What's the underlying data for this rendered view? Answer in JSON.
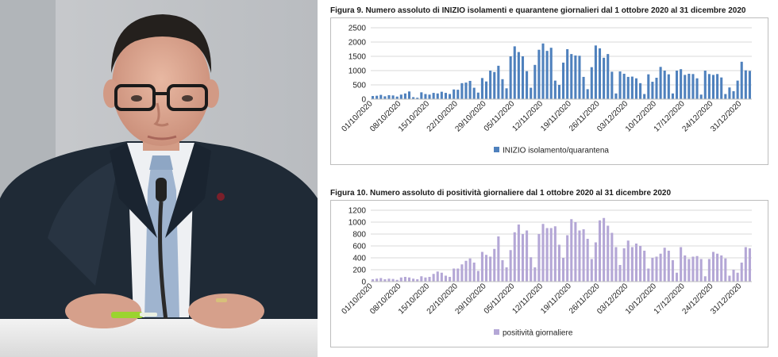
{
  "chart_data": [
    {
      "type": "bar",
      "title": "Figura 9. Numero assoluto di INIZIO isolamenti e quarantene giornalieri dal 1 ottobre 2020 al 31 dicembre 2020",
      "xlabel": "",
      "ylabel": "",
      "ylim": [
        0,
        2500
      ],
      "yticks": [
        0,
        500,
        1000,
        1500,
        2000,
        2500
      ],
      "grid": true,
      "legend": "bottom-center",
      "color": "#4f81bd",
      "x_tick_labels": [
        "01/10/2020",
        "08/10/2020",
        "15/10/2020",
        "22/10/2020",
        "29/10/2020",
        "05/11/2020",
        "12/11/2020",
        "19/11/2020",
        "26/11/2020",
        "03/12/2020",
        "10/12/2020",
        "17/12/2020",
        "24/12/2020",
        "31/12/2020"
      ],
      "series": [
        {
          "name": "INIZIO isolamento/quarantena",
          "values": [
            110,
            120,
            150,
            100,
            140,
            130,
            90,
            160,
            200,
            270,
            70,
            50,
            240,
            180,
            160,
            220,
            200,
            260,
            220,
            180,
            340,
            330,
            560,
            580,
            640,
            400,
            230,
            740,
            620,
            1000,
            950,
            1170,
            700,
            380,
            1500,
            1850,
            1650,
            1500,
            980,
            400,
            1200,
            1730,
            1950,
            1690,
            1800,
            650,
            500,
            1280,
            1750,
            1580,
            1530,
            1520,
            780,
            350,
            1120,
            1880,
            1780,
            1450,
            1580,
            960,
            200,
            970,
            890,
            780,
            790,
            730,
            560,
            180,
            870,
            610,
            750,
            1130,
            1000,
            870,
            200,
            1000,
            1050,
            850,
            890,
            880,
            730,
            160,
            1000,
            880,
            850,
            880,
            760,
            180,
            410,
            280,
            650,
            1310,
            1010,
            990
          ]
        }
      ]
    },
    {
      "type": "bar",
      "title": "Figura 10. Numero assoluto di positività giornaliere dal 1 ottobre 2020 al 31 dicembre 2020",
      "xlabel": "",
      "ylabel": "",
      "ylim": [
        0,
        1200
      ],
      "yticks": [
        0,
        200,
        400,
        600,
        800,
        1000,
        1200
      ],
      "grid": true,
      "legend": "bottom-center",
      "color": "#b4a7d6",
      "x_tick_labels": [
        "01/10/2020",
        "08/10/2020",
        "15/10/2020",
        "22/10/2020",
        "29/10/2020",
        "05/11/2020",
        "12/11/2020",
        "19/11/2020",
        "26/11/2020",
        "03/12/2020",
        "10/12/2020",
        "17/12/2020",
        "24/12/2020",
        "31/12/2020"
      ],
      "series": [
        {
          "name": "positività giornaliere",
          "values": [
            40,
            50,
            60,
            40,
            50,
            45,
            30,
            70,
            80,
            70,
            50,
            40,
            90,
            70,
            80,
            130,
            170,
            150,
            100,
            80,
            220,
            220,
            290,
            350,
            390,
            320,
            180,
            500,
            450,
            420,
            550,
            760,
            360,
            240,
            530,
            830,
            960,
            800,
            860,
            410,
            240,
            800,
            970,
            900,
            900,
            930,
            620,
            400,
            780,
            1050,
            1000,
            860,
            880,
            720,
            380,
            660,
            1030,
            1070,
            940,
            820,
            580,
            280,
            560,
            690,
            580,
            640,
            600,
            520,
            220,
            400,
            420,
            470,
            570,
            520,
            360,
            150,
            580,
            440,
            380,
            420,
            430,
            380,
            90,
            380,
            500,
            470,
            440,
            390,
            100,
            200,
            150,
            320,
            580,
            560
          ]
        }
      ]
    }
  ]
}
